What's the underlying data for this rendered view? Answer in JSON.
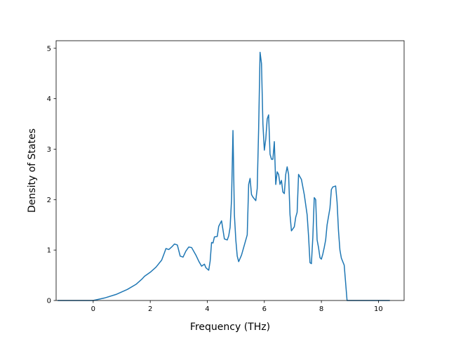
{
  "chart_data": {
    "type": "line",
    "title": "",
    "xlabel": "Frequency (THz)",
    "ylabel": "Density of States",
    "xlim": [
      -1.3,
      10.9
    ],
    "ylim": [
      0,
      5.15
    ],
    "xticks": [
      0,
      2,
      4,
      6,
      8,
      10
    ],
    "yticks": [
      0,
      1,
      2,
      3,
      4,
      5
    ],
    "xtick_labels": [
      "0",
      "2",
      "4",
      "6",
      "8",
      "10"
    ],
    "ytick_labels": [
      "0",
      "1",
      "2",
      "3",
      "4",
      "5"
    ],
    "grid": false,
    "legend": "none",
    "series": [
      {
        "color": "#1f77b4",
        "x": [
          -1.25,
          0.0,
          0.4,
          0.8,
          1.2,
          1.5,
          1.7,
          1.8,
          2.0,
          2.2,
          2.4,
          2.5,
          2.55,
          2.65,
          2.75,
          2.85,
          2.95,
          3.05,
          3.15,
          3.25,
          3.35,
          3.45,
          3.6,
          3.7,
          3.8,
          3.9,
          3.95,
          4.05,
          4.1,
          4.15,
          4.2,
          4.25,
          4.35,
          4.4,
          4.5,
          4.6,
          4.7,
          4.75,
          4.8,
          4.85,
          4.9,
          4.95,
          5.0,
          5.05,
          5.1,
          5.2,
          5.3,
          5.4,
          5.45,
          5.5,
          5.55,
          5.6,
          5.7,
          5.75,
          5.8,
          5.85,
          5.9,
          5.95,
          6.0,
          6.05,
          6.1,
          6.15,
          6.2,
          6.25,
          6.3,
          6.35,
          6.4,
          6.45,
          6.5,
          6.55,
          6.6,
          6.65,
          6.7,
          6.75,
          6.8,
          6.85,
          6.9,
          6.95,
          7.0,
          7.05,
          7.1,
          7.15,
          7.2,
          7.3,
          7.4,
          7.5,
          7.55,
          7.6,
          7.65,
          7.7,
          7.75,
          7.8,
          7.85,
          7.9,
          7.95,
          8.0,
          8.05,
          8.1,
          8.15,
          8.2,
          8.3,
          8.35,
          8.4,
          8.5,
          8.55,
          8.6,
          8.65,
          8.7,
          8.8,
          8.9,
          8.95,
          9.0,
          9.05,
          9.1,
          9.2,
          9.3,
          9.38,
          9.4,
          9.5,
          10.0,
          10.4
        ],
        "y": [
          0,
          0.0,
          0.05,
          0.12,
          0.22,
          0.32,
          0.42,
          0.48,
          0.56,
          0.66,
          0.8,
          0.95,
          1.03,
          1.01,
          1.06,
          1.12,
          1.1,
          0.88,
          0.86,
          0.98,
          1.06,
          1.05,
          0.9,
          0.78,
          0.68,
          0.72,
          0.65,
          0.6,
          0.78,
          1.15,
          1.14,
          1.26,
          1.27,
          1.47,
          1.58,
          1.22,
          1.2,
          1.28,
          1.45,
          2.0,
          3.37,
          1.7,
          1.2,
          0.88,
          0.77,
          0.9,
          1.1,
          1.3,
          2.3,
          2.42,
          2.1,
          2.05,
          1.98,
          2.22,
          3.4,
          4.92,
          4.7,
          3.5,
          2.98,
          3.2,
          3.6,
          3.68,
          2.9,
          2.8,
          2.8,
          3.15,
          2.3,
          2.55,
          2.5,
          2.3,
          2.38,
          2.15,
          2.12,
          2.5,
          2.65,
          2.5,
          1.7,
          1.38,
          1.42,
          1.46,
          1.65,
          1.75,
          2.5,
          2.4,
          2.1,
          1.7,
          1.28,
          0.75,
          0.73,
          1.25,
          2.04,
          2.0,
          1.2,
          1.05,
          0.85,
          0.82,
          0.92,
          1.05,
          1.2,
          1.5,
          1.83,
          2.2,
          2.25,
          2.27,
          1.95,
          1.38,
          1.0,
          0.84,
          0.7,
          0.0,
          0.0,
          0.0,
          0.0,
          0.0,
          0.0,
          0.0,
          0.0,
          0.0,
          0.0,
          0.0,
          0.0
        ]
      }
    ]
  }
}
